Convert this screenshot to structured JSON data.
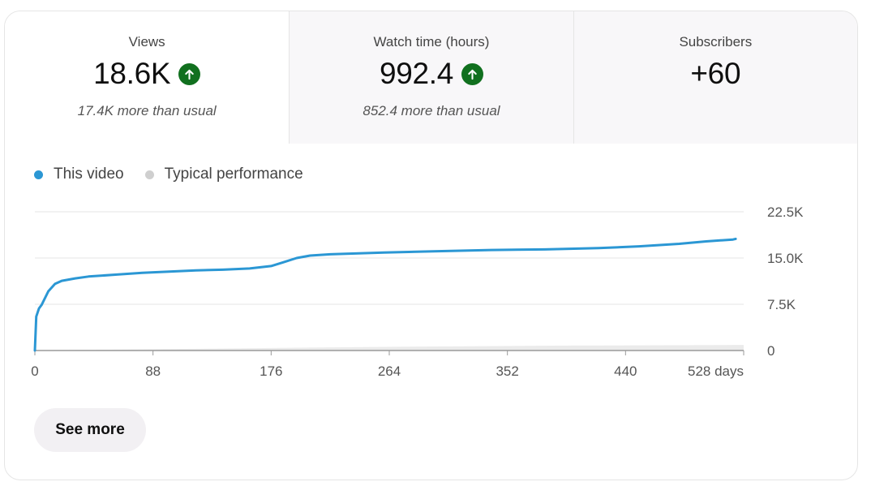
{
  "metrics": [
    {
      "title": "Views",
      "value": "18.6K",
      "trend": "up",
      "comparison": "17.4K more than usual",
      "selected": true
    },
    {
      "title": "Watch time (hours)",
      "value": "992.4",
      "trend": "up",
      "comparison": "852.4 more than usual",
      "selected": false
    },
    {
      "title": "Subscribers",
      "value": "+60",
      "trend": "none",
      "comparison": "",
      "selected": false
    }
  ],
  "legend": [
    {
      "label": "This video",
      "color": "#2b97d4"
    },
    {
      "label": "Typical performance",
      "color": "#cfcfcf"
    }
  ],
  "see_more_label": "See more",
  "colors": {
    "trend_up": "#11701f",
    "series_line": "#2b97d4",
    "typical_band": "#ebebeb",
    "gridline": "#e6e6e6"
  },
  "chart_data": {
    "type": "line",
    "x_tick_labels": [
      "0",
      "88",
      "176",
      "264",
      "352",
      "440",
      "528 days"
    ],
    "x_ticks": [
      0,
      88,
      176,
      264,
      352,
      440,
      528
    ],
    "y_tick_labels": [
      "0",
      "7.5K",
      "15.0K",
      "22.5K"
    ],
    "y_ticks": [
      0,
      7500,
      15000,
      22500
    ],
    "xlim": [
      0,
      528
    ],
    "ylim": [
      0,
      22500
    ],
    "grid": true,
    "legend_position": "top-left",
    "series": [
      {
        "name": "This video",
        "x": [
          0,
          1,
          3,
          5,
          10,
          15,
          20,
          30,
          40,
          60,
          80,
          100,
          120,
          140,
          160,
          176,
          185,
          195,
          205,
          220,
          260,
          300,
          340,
          380,
          420,
          450,
          480,
          500,
          520,
          522
        ],
        "values": [
          0,
          5500,
          6800,
          7400,
          9600,
          10800,
          11300,
          11700,
          12000,
          12300,
          12600,
          12800,
          13000,
          13100,
          13300,
          13700,
          14300,
          15000,
          15400,
          15600,
          15900,
          16100,
          16300,
          16400,
          16600,
          16900,
          17300,
          17700,
          18000,
          18100
        ]
      },
      {
        "name": "Typical performance",
        "x": [
          0,
          60,
          150,
          264,
          400,
          528
        ],
        "low": [
          0,
          0,
          0,
          0,
          0,
          0
        ],
        "high": [
          50,
          150,
          350,
          600,
          800,
          900
        ]
      }
    ]
  }
}
